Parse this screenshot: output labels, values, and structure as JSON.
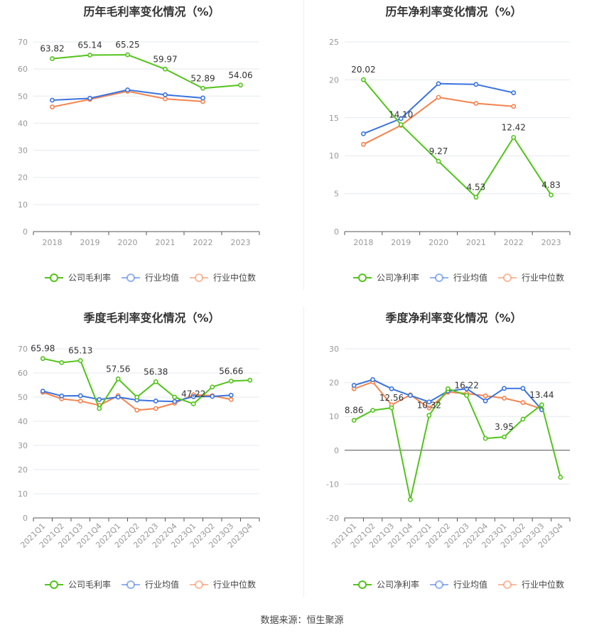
{
  "source": "数据来源：恒生聚源",
  "chart_data": [
    {
      "type": "line",
      "title": "历年毛利率变化情况（%）",
      "categories": [
        "2018",
        "2019",
        "2020",
        "2021",
        "2022",
        "2023"
      ],
      "ylim": [
        0,
        70
      ],
      "yticks": [
        0,
        10,
        20,
        30,
        40,
        50,
        60,
        70
      ],
      "label_series": 0,
      "series": [
        {
          "name": "公司毛利率",
          "color": "#52c41a",
          "values": [
            63.82,
            65.14,
            65.25,
            59.97,
            52.89,
            54.06
          ],
          "labels": [
            "63.82",
            "65.14",
            "65.25",
            "59.97",
            "52.89",
            "54.06"
          ]
        },
        {
          "name": "行业均值",
          "color": "#3b73e0",
          "values": [
            48.5,
            49.2,
            52.3,
            50.5,
            49.3,
            null
          ]
        },
        {
          "name": "行业中位数",
          "color": "#f5834e",
          "values": [
            46.0,
            48.8,
            51.8,
            49.0,
            48.0,
            null
          ]
        }
      ]
    },
    {
      "type": "line",
      "title": "历年净利率变化情况（%）",
      "categories": [
        "2018",
        "2019",
        "2020",
        "2021",
        "2022",
        "2023"
      ],
      "ylim": [
        0,
        25
      ],
      "yticks": [
        0,
        5,
        10,
        15,
        20,
        25
      ],
      "label_series": 0,
      "series": [
        {
          "name": "公司净利率",
          "color": "#52c41a",
          "values": [
            20.02,
            14.1,
            9.27,
            4.53,
            12.42,
            4.83
          ],
          "labels": [
            "20.02",
            "14.10",
            "9.27",
            "4.53",
            "12.42",
            "4.83"
          ]
        },
        {
          "name": "行业均值",
          "color": "#3b73e0",
          "values": [
            12.9,
            14.9,
            19.5,
            19.4,
            18.3,
            null
          ]
        },
        {
          "name": "行业中位数",
          "color": "#f5834e",
          "values": [
            11.5,
            14.0,
            17.7,
            16.9,
            16.5,
            null
          ]
        }
      ]
    },
    {
      "type": "line",
      "title": "季度毛利率变化情况（%）",
      "categories": [
        "2021Q1",
        "2021Q2",
        "2021Q3",
        "2021Q4",
        "2022Q1",
        "2022Q2",
        "2022Q3",
        "2022Q4",
        "2023Q1",
        "2023Q2",
        "2023Q3",
        "2023Q4"
      ],
      "ylim": [
        0,
        70
      ],
      "yticks": [
        0,
        10,
        20,
        30,
        40,
        50,
        60,
        70
      ],
      "label_series": 0,
      "series": [
        {
          "name": "公司毛利率",
          "color": "#52c41a",
          "values": [
            65.98,
            64.3,
            65.13,
            45.3,
            57.56,
            50.0,
            56.38,
            50.0,
            47.22,
            54.2,
            56.66,
            57.0
          ],
          "labels": [
            "65.98",
            "",
            "65.13",
            "",
            "57.56",
            "",
            "56.38",
            "",
            "47.22",
            "",
            "56.66",
            ""
          ]
        },
        {
          "name": "行业均值",
          "color": "#3b73e0",
          "values": [
            52.5,
            50.5,
            50.6,
            49.0,
            50.0,
            48.8,
            48.4,
            48.2,
            50.2,
            50.3,
            50.8,
            null
          ]
        },
        {
          "name": "行业中位数",
          "color": "#f5834e",
          "values": [
            52.0,
            49.3,
            48.4,
            46.6,
            50.6,
            44.6,
            45.3,
            47.5,
            51.0,
            50.6,
            49.0,
            null
          ]
        }
      ]
    },
    {
      "type": "line",
      "title": "季度净利率变化情况（%）",
      "categories": [
        "2021Q1",
        "2021Q2",
        "2021Q3",
        "2021Q4",
        "2022Q1",
        "2022Q2",
        "2022Q3",
        "2022Q4",
        "2023Q1",
        "2023Q2",
        "2023Q3",
        "2023Q4"
      ],
      "ylim": [
        -20,
        30
      ],
      "yticks": [
        -20,
        -10,
        0,
        10,
        20,
        30
      ],
      "label_series": 0,
      "series": [
        {
          "name": "公司净利率",
          "color": "#52c41a",
          "values": [
            8.86,
            11.8,
            12.56,
            -14.6,
            10.32,
            18.2,
            16.22,
            3.5,
            3.95,
            9.2,
            13.44,
            -8.0
          ],
          "labels": [
            "8.86",
            "",
            "12.56",
            "",
            "10.32",
            "",
            "16.22",
            "",
            "3.95",
            "",
            "13.44",
            ""
          ]
        },
        {
          "name": "行业均值",
          "color": "#3b73e0",
          "values": [
            19.2,
            20.9,
            18.2,
            16.2,
            14.3,
            17.5,
            18.2,
            14.6,
            18.3,
            18.3,
            12.0,
            null
          ]
        },
        {
          "name": "行业中位数",
          "color": "#f5834e",
          "values": [
            18.2,
            20.2,
            13.4,
            16.4,
            12.5,
            17.2,
            16.8,
            16.1,
            15.4,
            14.1,
            12.2,
            null
          ]
        }
      ]
    }
  ]
}
